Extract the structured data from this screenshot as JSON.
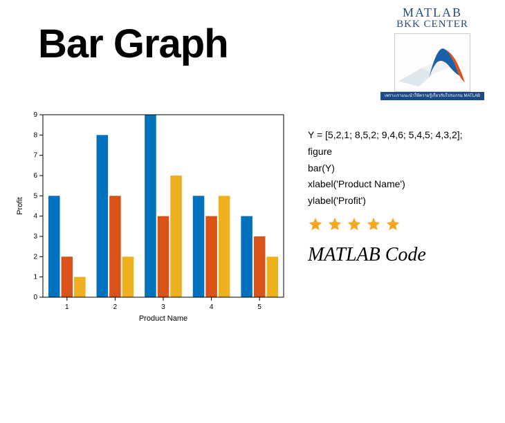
{
  "title": "Bar Graph",
  "logo": {
    "line1": "MATLAB",
    "line2": "BKK CENTER",
    "strip": "เพราะเราแนะนำให้ความรู้เกี่ยวกับโปรแกรม MATLAB"
  },
  "chart": {
    "type": "bar-grouped",
    "xlabel": "Product Name",
    "ylabel": "Profit",
    "xlabel_fontsize": 11,
    "ylabel_fontsize": 11,
    "tick_fontsize": 10,
    "background_color": "#ffffff",
    "axis_color": "#000000",
    "categories": [
      "1",
      "2",
      "3",
      "4",
      "5"
    ],
    "series": [
      {
        "color": "#0072bd",
        "values": [
          5,
          8,
          9,
          5,
          4
        ]
      },
      {
        "color": "#d95319",
        "values": [
          2,
          5,
          4,
          4,
          3
        ]
      },
      {
        "color": "#edb120",
        "values": [
          1,
          2,
          6,
          5,
          2
        ]
      }
    ],
    "ylim": [
      0,
      9
    ],
    "ytick_step": 1,
    "yticks": [
      0,
      1,
      2,
      3,
      4,
      5,
      6,
      7,
      8,
      9
    ],
    "bar_group_width": 0.8,
    "plot_box_color": "#000000"
  },
  "code": {
    "lines": [
      "Y = [5,2,1; 8,5,2; 9,4,6; 5,4,5; 4,3,2];",
      "figure",
      "bar(Y)",
      "xlabel('Product Name')",
      "ylabel('Profit')"
    ]
  },
  "rating": {
    "stars": 5,
    "star_color": "#f5a623"
  },
  "script_label": "MATLAB Code"
}
